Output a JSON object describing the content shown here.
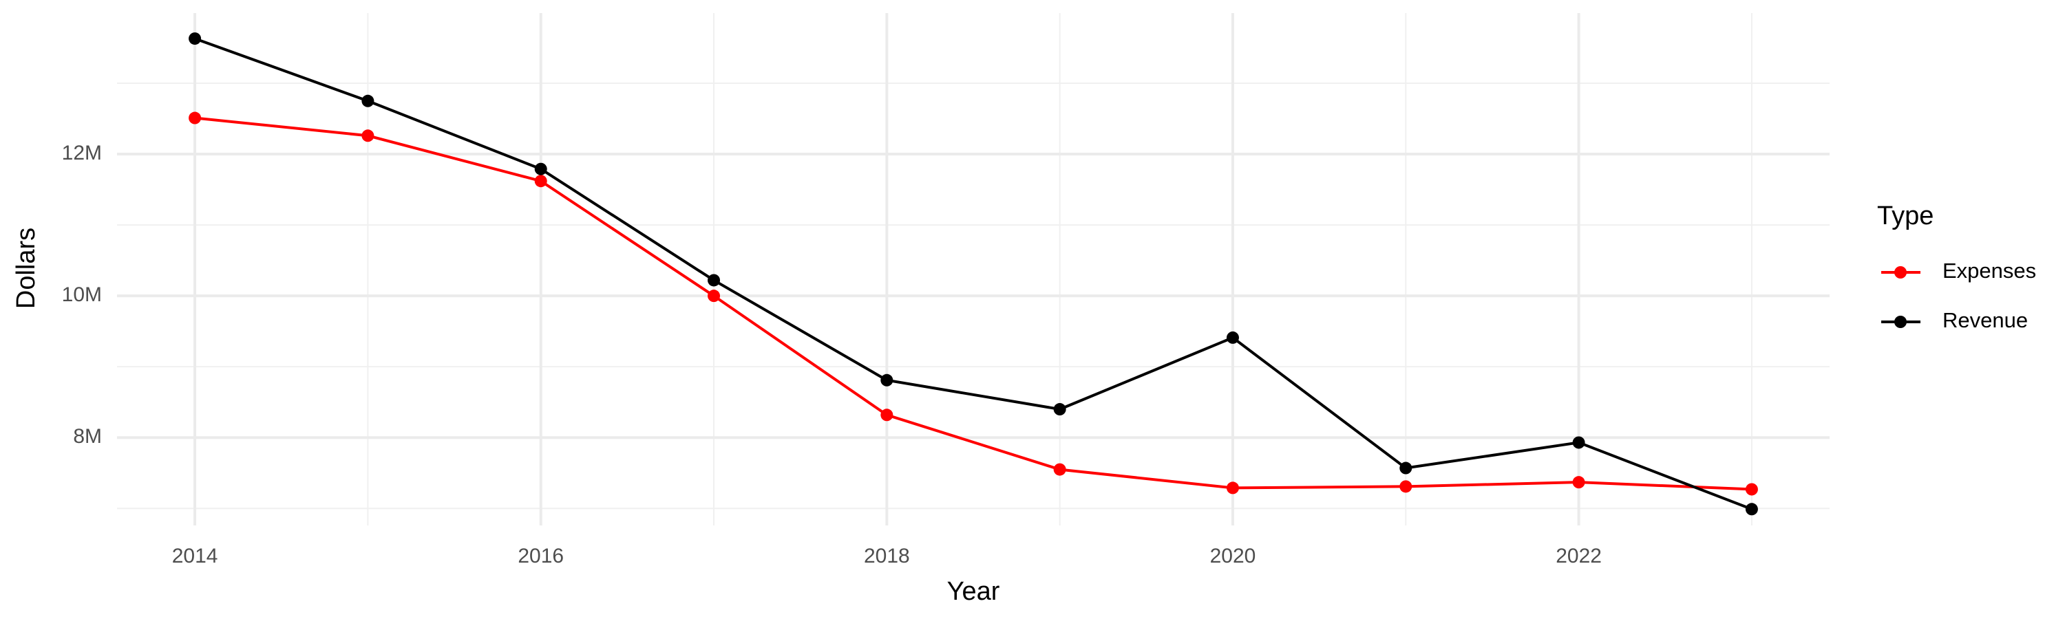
{
  "chart_data": {
    "type": "line",
    "x_label": "Year",
    "y_label": "Dollars",
    "legend_title": "Type",
    "x": [
      2014,
      2015,
      2016,
      2017,
      2018,
      2019,
      2020,
      2021,
      2022,
      2023
    ],
    "series": [
      {
        "name": "Expenses",
        "color": "#ff0000",
        "values": [
          12510000,
          12260000,
          11620000,
          10000000,
          8320000,
          7550000,
          7290000,
          7310000,
          7370000,
          7270000
        ]
      },
      {
        "name": "Revenue",
        "color": "#000000",
        "values": [
          13630000,
          12750000,
          11790000,
          10220000,
          8810000,
          8400000,
          9410000,
          7570000,
          7930000,
          6990000
        ]
      }
    ],
    "xlim": [
      2013.55,
      2023.45
    ],
    "xticks": [
      2014,
      2016,
      2018,
      2020,
      2022
    ],
    "minor_xticks": [
      2015,
      2017,
      2019,
      2021,
      2023
    ],
    "ylim": [
      6760000,
      13990000
    ],
    "yticks": [
      {
        "value": 8000000,
        "label": "8M"
      },
      {
        "value": 10000000,
        "label": "10M"
      },
      {
        "value": 12000000,
        "label": "12M"
      }
    ],
    "minor_yticks": [
      7000000,
      9000000,
      11000000,
      13000000
    ],
    "grid": true,
    "legend_position": "right"
  }
}
